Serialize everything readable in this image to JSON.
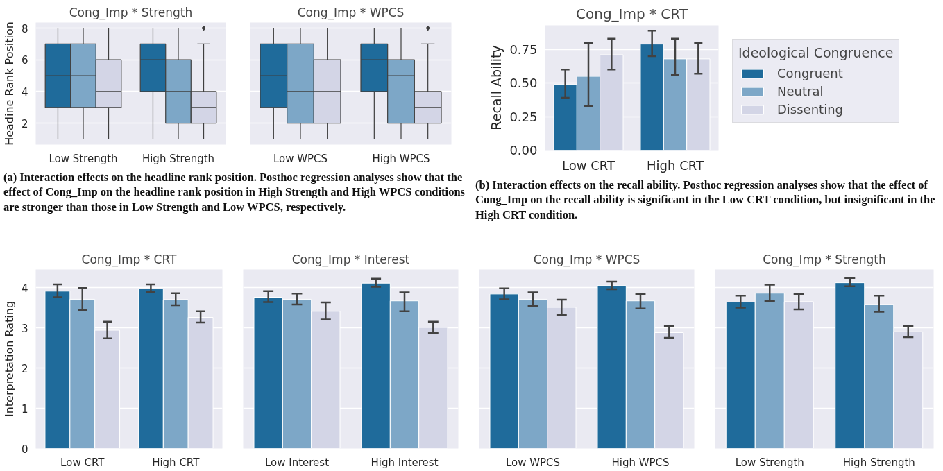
{
  "chart_data": [
    {
      "type": "box",
      "title": "Cong_Imp * Strength",
      "ylabel": "Headine Rank Position",
      "categories": [
        "Low Strength",
        "High Strength"
      ],
      "ylim": [
        0.65,
        8.35
      ],
      "yticks": [
        2,
        4,
        6,
        8
      ],
      "grid": "y",
      "legend": false,
      "annotations": [
        "(a) Interaction effects on the headline rank position. Posthoc regression analyses show that the effect of Cong_Imp on the headline rank position in High Strength and High WPCS conditions are stronger than those in Low Strength and Low WPCS, respectively."
      ],
      "series": [
        {
          "color": "#1f6b9b",
          "boxes": [
            {
              "low": 1,
              "q1": 3,
              "median": 5,
              "q3": 7,
              "high": 8
            },
            {
              "low": 1,
              "q1": 4,
              "median": 6,
              "q3": 7,
              "high": 8
            }
          ]
        },
        {
          "color": "#7da7c7",
          "boxes": [
            {
              "low": 1,
              "q1": 3,
              "median": 5,
              "q3": 7,
              "high": 8
            },
            {
              "low": 1,
              "q1": 2,
              "median": 4,
              "q3": 6,
              "high": 8
            }
          ]
        },
        {
          "color": "#d3d5e6",
          "boxes": [
            {
              "low": 1,
              "q1": 3,
              "median": 4,
              "q3": 6,
              "high": 8
            },
            {
              "low": 1,
              "q1": 2,
              "median": 3,
              "q3": 4,
              "high": 7,
              "outliers": [
                8
              ]
            }
          ]
        }
      ]
    },
    {
      "type": "box",
      "title": "Cong_Imp * WPCS",
      "categories": [
        "Low WPCS",
        "High WPCS"
      ],
      "ylim": [
        0.65,
        8.35
      ],
      "yticks": [
        2,
        4,
        6,
        8
      ],
      "grid": "y",
      "tick_labels": "x",
      "series": [
        {
          "color": "#1f6b9b",
          "boxes": [
            {
              "low": 1,
              "q1": 3,
              "median": 5,
              "q3": 7,
              "high": 8
            },
            {
              "low": 1,
              "q1": 4,
              "median": 6,
              "q3": 7,
              "high": 8
            }
          ]
        },
        {
          "color": "#7da7c7",
          "boxes": [
            {
              "low": 1,
              "q1": 2,
              "median": 4,
              "q3": 7,
              "high": 8
            },
            {
              "low": 1,
              "q1": 2,
              "median": 5,
              "q3": 6,
              "high": 8
            }
          ]
        },
        {
          "color": "#d3d5e6",
          "boxes": [
            {
              "low": 1,
              "q1": 2,
              "median": 4,
              "q3": 6,
              "high": 8
            },
            {
              "low": 1,
              "q1": 2,
              "median": 3,
              "q3": 4,
              "high": 7,
              "outliers": [
                8
              ]
            }
          ]
        }
      ]
    },
    {
      "type": "bar",
      "title": "Cong_Imp * CRT",
      "ylabel": "Recall Ability",
      "legend_title": "Ideological Congruence",
      "legend": "right",
      "categories": [
        "Low CRT",
        "High CRT"
      ],
      "ylim": [
        0,
        0.93
      ],
      "yticks": [
        {
          "value": 0,
          "label": "0.00"
        },
        0.25,
        {
          "value": 0.5,
          "label": "0.50"
        },
        0.75
      ],
      "grid": "y",
      "annotations": [
        "(b) Interaction effects on the recall ability. Posthoc regression analyses show that the effect of Cong_Imp on the recall ability is significant in the Low CRT condition, but insignificant in the High CRT condition."
      ],
      "series": [
        {
          "name": "Congruent",
          "color": "#1f6b9b",
          "values": [
            0.49,
            0.79
          ],
          "errors": [
            [
              0.39,
              0.6
            ],
            [
              0.7,
              0.89
            ]
          ]
        },
        {
          "name": "Neutral",
          "color": "#7da7c7",
          "values": [
            0.55,
            0.68
          ],
          "errors": [
            [
              0.33,
              0.8
            ],
            [
              0.56,
              0.83
            ]
          ]
        },
        {
          "name": "Dissenting",
          "color": "#d3d5e6",
          "values": [
            0.71,
            0.68
          ],
          "errors": [
            [
              0.6,
              0.83
            ],
            [
              0.57,
              0.8
            ]
          ]
        }
      ]
    },
    {
      "type": "bar",
      "title": "Cong_Imp * CRT",
      "ylabel": "Interpretation Rating",
      "categories": [
        "Low CRT",
        "High CRT"
      ],
      "ylim": [
        0,
        4.45
      ],
      "yticks": [
        0,
        1,
        2,
        3,
        4
      ],
      "grid": "y",
      "series": [
        {
          "color": "#1f6b9b",
          "values": [
            3.91,
            3.97
          ],
          "errors": [
            [
              3.76,
              4.08
            ],
            [
              3.89,
              4.08
            ]
          ]
        },
        {
          "color": "#7da7c7",
          "values": [
            3.71,
            3.7
          ],
          "errors": [
            [
              3.44,
              3.99
            ],
            [
              3.56,
              3.86
            ]
          ]
        },
        {
          "color": "#d3d5e6",
          "values": [
            2.94,
            3.26
          ],
          "errors": [
            [
              2.74,
              3.15
            ],
            [
              3.13,
              3.41
            ]
          ]
        }
      ]
    },
    {
      "type": "bar",
      "title": "Cong_Imp * Interest",
      "categories": [
        "Low Interest",
        "High Interest"
      ],
      "ylim": [
        0,
        4.45
      ],
      "yticks": [
        0,
        1,
        2,
        3,
        4
      ],
      "grid": "y",
      "tick_labels": "x",
      "series": [
        {
          "color": "#1f6b9b",
          "values": [
            3.76,
            4.11
          ],
          "errors": [
            [
              3.64,
              3.91
            ],
            [
              4.02,
              4.22
            ]
          ]
        },
        {
          "color": "#7da7c7",
          "values": [
            3.71,
            3.67
          ],
          "errors": [
            [
              3.58,
              3.85
            ],
            [
              3.41,
              3.88
            ]
          ]
        },
        {
          "color": "#d3d5e6",
          "values": [
            3.41,
            3.01
          ],
          "errors": [
            [
              3.21,
              3.63
            ],
            [
              2.87,
              3.15
            ]
          ]
        }
      ]
    },
    {
      "type": "bar",
      "title": "Cong_Imp * WPCS",
      "categories": [
        "Low WPCS",
        "High WPCS"
      ],
      "ylim": [
        0,
        4.45
      ],
      "yticks": [
        0,
        1,
        2,
        3,
        4
      ],
      "grid": "y",
      "tick_labels": "x",
      "series": [
        {
          "color": "#1f6b9b",
          "values": [
            3.84,
            4.05
          ],
          "errors": [
            [
              3.71,
              3.98
            ],
            [
              3.96,
              4.15
            ]
          ]
        },
        {
          "color": "#7da7c7",
          "values": [
            3.71,
            3.67
          ],
          "errors": [
            [
              3.55,
              3.88
            ],
            [
              3.48,
              3.84
            ]
          ]
        },
        {
          "color": "#d3d5e6",
          "values": [
            3.51,
            2.88
          ],
          "errors": [
            [
              3.32,
              3.7
            ],
            [
              2.75,
              3.04
            ]
          ]
        }
      ]
    },
    {
      "type": "bar",
      "title": "Cong_Imp * Strength",
      "categories": [
        "Low Strength",
        "High Strength"
      ],
      "ylim": [
        0,
        4.45
      ],
      "yticks": [
        0,
        1,
        2,
        3,
        4
      ],
      "grid": "y",
      "tick_labels": "x",
      "series": [
        {
          "color": "#1f6b9b",
          "values": [
            3.64,
            4.12
          ],
          "errors": [
            [
              3.5,
              3.8
            ],
            [
              4.03,
              4.24
            ]
          ]
        },
        {
          "color": "#7da7c7",
          "values": [
            3.86,
            3.58
          ],
          "errors": [
            [
              3.66,
              4.07
            ],
            [
              3.4,
              3.8
            ]
          ]
        },
        {
          "color": "#d3d5e6",
          "values": [
            3.65,
            2.9
          ],
          "errors": [
            [
              3.46,
              3.84
            ],
            [
              2.77,
              3.04
            ]
          ]
        }
      ]
    }
  ]
}
